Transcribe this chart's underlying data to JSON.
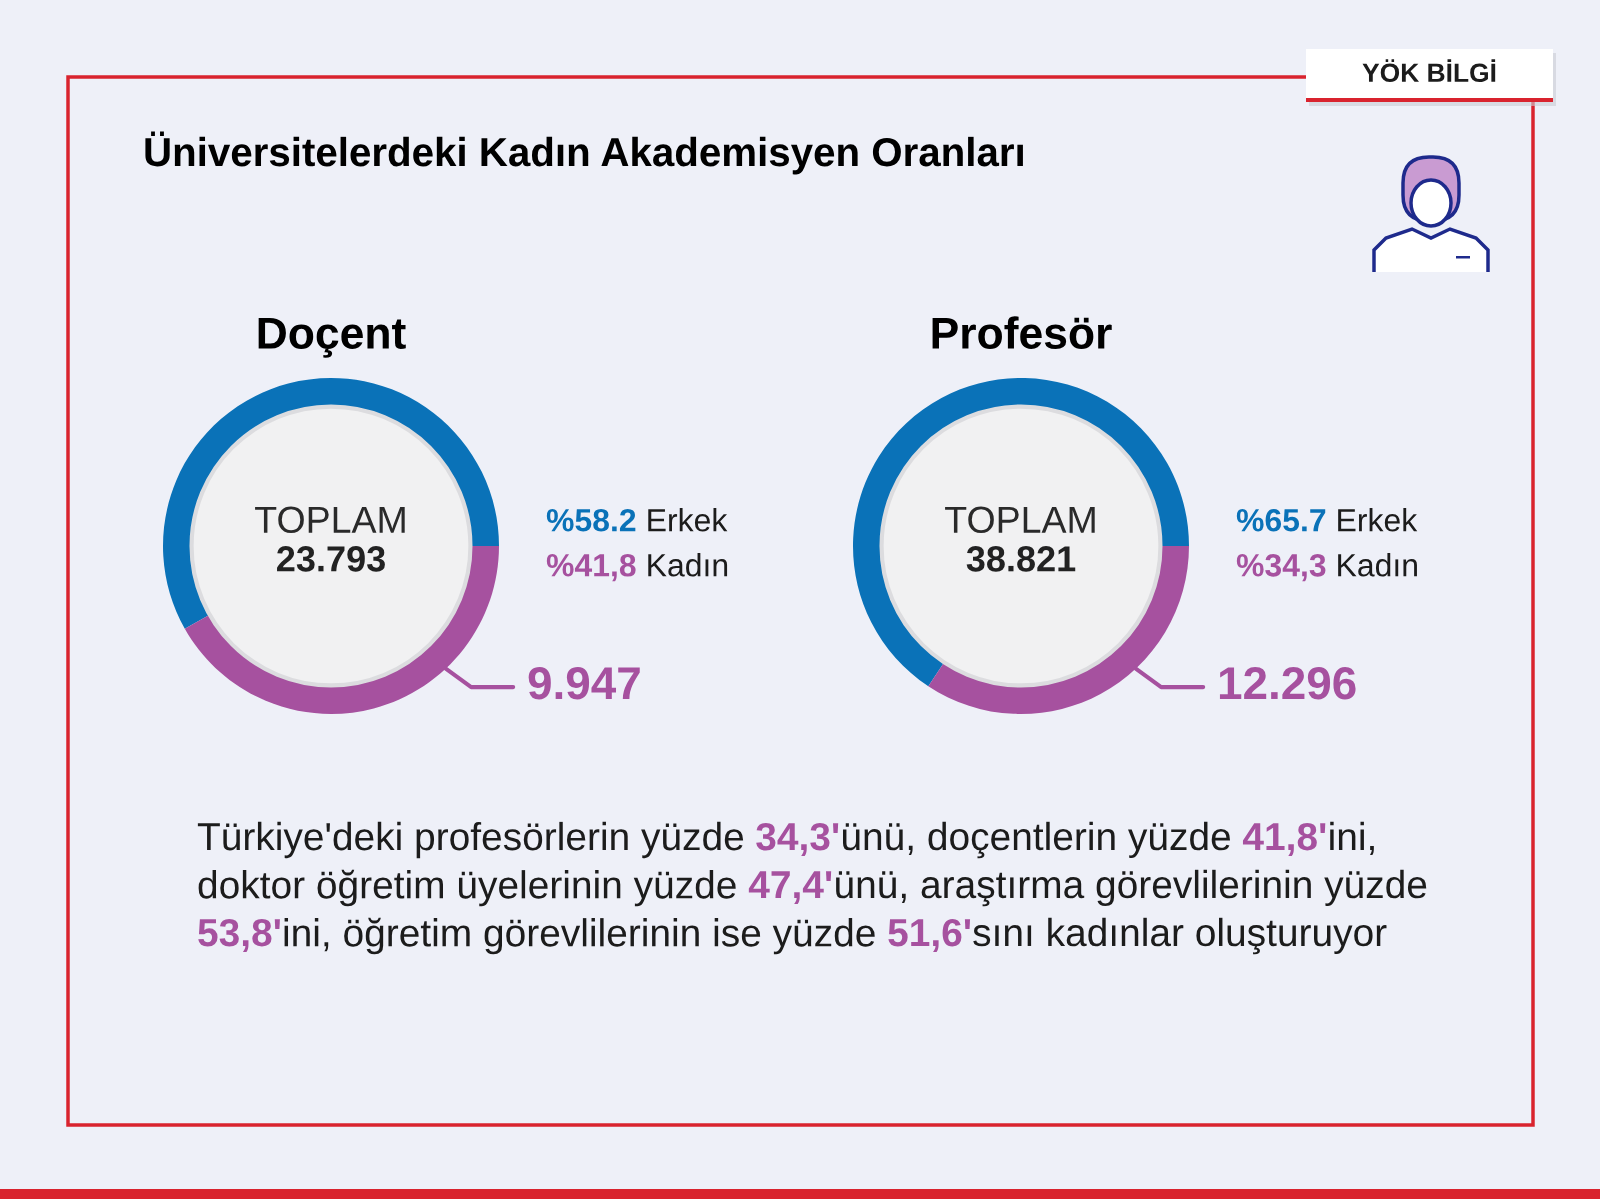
{
  "chart_data": [
    {
      "type": "other",
      "title": "Üniversitelerdeki Kadın Akademisyen Oranları",
      "annotations": [
        "YÖK BİLGİ"
      ]
    },
    {
      "type": "donut",
      "title": "Doçent",
      "categories": [
        "Erkek",
        "Kadın"
      ],
      "values": [
        58.2,
        41.8
      ],
      "colors": [
        "#0a72b8",
        "#a6519f"
      ],
      "value_labels": [
        "%58.2",
        "%41,8"
      ],
      "annotations": [
        "TOPLAM",
        "23.793",
        "9.947"
      ]
    },
    {
      "type": "donut",
      "title": "Profesör",
      "categories": [
        "Erkek",
        "Kadın"
      ],
      "values": [
        65.7,
        34.3
      ],
      "colors": [
        "#0a72b8",
        "#a6519f"
      ],
      "value_labels": [
        "%65.7",
        "%34,3"
      ],
      "annotations": [
        "TOPLAM",
        "38.821",
        "12.296"
      ]
    },
    {
      "type": "other",
      "annotations": [
        "Türkiye'deki profesörlerin yüzde 34,3'ünü, doçentlerin yüzde 41,8'ini,",
        "doktor öğretim üyelerinin yüzde 47,4'ünü, araştırma görevlilerinin yüzde",
        "53,8'ini, öğretim görevlilerinin ise yüzde 51,6'sını kadınlar oluşturuyor"
      ]
    }
  ]
}
